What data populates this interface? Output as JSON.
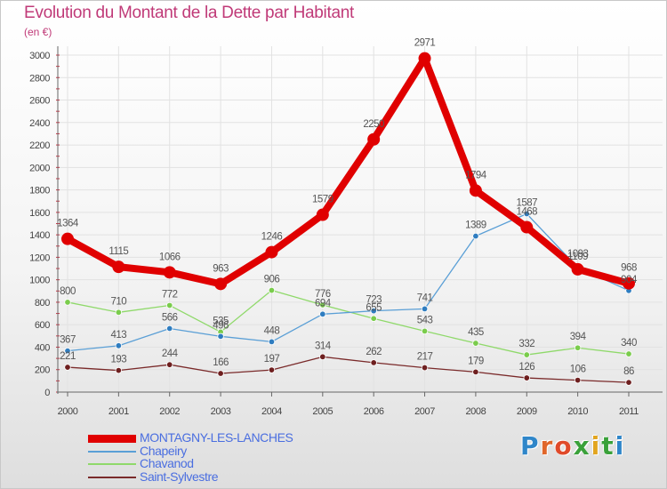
{
  "title": "Evolution du Montant de la Dette par Habitant",
  "subtitle": "(en €)",
  "logo": {
    "text": "Proxiti",
    "letter_colors": [
      "#2f86c9",
      "#e0662a",
      "#e04a2a",
      "#3aa13a",
      "#e2a520",
      "#3aa13a",
      "#2f86c9"
    ]
  },
  "colors": {
    "title": "#c03a78",
    "axis": "#666666",
    "grid": "#e2e2e2"
  },
  "chart_data": {
    "type": "line",
    "x": [
      "2000",
      "2001",
      "2002",
      "2003",
      "2004",
      "2005",
      "2006",
      "2007",
      "2008",
      "2009",
      "2010",
      "2011"
    ],
    "ylim": [
      0,
      3000
    ],
    "yticks": [
      0,
      200,
      400,
      600,
      800,
      1000,
      1200,
      1400,
      1600,
      1800,
      2000,
      2200,
      2400,
      2600,
      2800,
      3000
    ],
    "grid": true,
    "legend_position": "bottom-left",
    "series": [
      {
        "name": "MONTAGNY-LES-LANCHES",
        "values": [
          1364,
          1115,
          1066,
          963,
          1246,
          1579,
          2250,
          2971,
          1794,
          1468,
          1093,
          968
        ],
        "labels": [
          "1364",
          "1115",
          "1066",
          "963",
          "1246",
          "1579",
          "2250",
          "2971",
          "1794",
          "1468",
          "1093",
          "968"
        ],
        "color": "#e00000",
        "label_color": "#555555",
        "line_width": 8,
        "marker_radius": 7
      },
      {
        "name": "Chapeiry",
        "values": [
          367,
          413,
          566,
          496,
          448,
          694,
          723,
          741,
          1389,
          1587,
          1109,
          904
        ],
        "labels": [
          "367",
          "413",
          "566",
          "496",
          "448",
          "694",
          "723",
          "741",
          "1389",
          "1587",
          "1109",
          "904"
        ],
        "color": "#5a9fd6",
        "marker_color": "#2f7dc0",
        "label_color": "#555555",
        "line_width": 1.3,
        "marker_radius": 3.3
      },
      {
        "name": "Chavanod",
        "values": [
          800,
          710,
          772,
          535,
          906,
          776,
          655,
          543,
          435,
          332,
          394,
          340
        ],
        "labels": [
          "800",
          "710",
          "772",
          "535",
          "906",
          "776",
          "655",
          "543",
          "435",
          "332",
          "394",
          "340"
        ],
        "color": "#8fd96a",
        "marker_color": "#7acc4c",
        "label_color": "#555555",
        "line_width": 1.3,
        "marker_radius": 3.3
      },
      {
        "name": "Saint-Sylvestre",
        "values": [
          221,
          193,
          244,
          166,
          197,
          314,
          262,
          217,
          179,
          126,
          106,
          86
        ],
        "labels": [
          "221",
          "193",
          "244",
          "166",
          "197",
          "314",
          "262",
          "217",
          "179",
          "126",
          "106",
          "86"
        ],
        "color": "#7a2a2a",
        "marker_color": "#6e1f1f",
        "label_color": "#555555",
        "line_width": 1.3,
        "marker_radius": 3.3
      }
    ],
    "legend_label_colors": [
      "#4a6ee0",
      "#4a6ee0",
      "#4a6ee0",
      "#4a6ee0"
    ]
  }
}
